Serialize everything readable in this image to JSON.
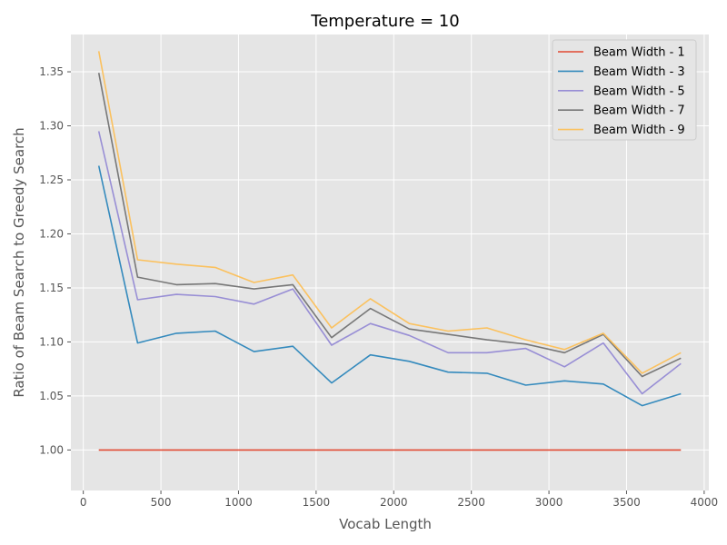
{
  "chart_data": {
    "type": "line",
    "title": "Temperature = 10",
    "xlabel": "Vocab Length",
    "ylabel": "Ratio of Beam Search to Greedy Search",
    "xlim": [
      -80,
      4030
    ],
    "ylim": [
      0.9625,
      1.3845
    ],
    "xticks": [
      0,
      500,
      1000,
      1500,
      2000,
      2500,
      3000,
      3500,
      4000
    ],
    "yticks": [
      1.0,
      1.05,
      1.1,
      1.15,
      1.2,
      1.25,
      1.3,
      1.35
    ],
    "x": [
      100,
      350,
      600,
      850,
      1100,
      1350,
      1600,
      1850,
      2100,
      2350,
      2600,
      2850,
      3100,
      3350,
      3600,
      3850
    ],
    "series": [
      {
        "name": "Beam Width - 1",
        "color": "#E24A33",
        "values": [
          1.0,
          1.0,
          1.0,
          1.0,
          1.0,
          1.0,
          1.0,
          1.0,
          1.0,
          1.0,
          1.0,
          1.0,
          1.0,
          1.0,
          1.0,
          1.0
        ]
      },
      {
        "name": "Beam Width - 3",
        "color": "#348ABD",
        "values": [
          1.263,
          1.099,
          1.108,
          1.11,
          1.091,
          1.096,
          1.062,
          1.088,
          1.082,
          1.072,
          1.071,
          1.06,
          1.064,
          1.061,
          1.041,
          1.052
        ]
      },
      {
        "name": "Beam Width - 5",
        "color": "#988ED5",
        "values": [
          1.295,
          1.139,
          1.144,
          1.142,
          1.135,
          1.149,
          1.097,
          1.117,
          1.106,
          1.09,
          1.09,
          1.094,
          1.077,
          1.099,
          1.052,
          1.08
        ]
      },
      {
        "name": "Beam Width - 7",
        "color": "#777777",
        "values": [
          1.349,
          1.16,
          1.153,
          1.154,
          1.149,
          1.153,
          1.104,
          1.131,
          1.112,
          1.107,
          1.102,
          1.098,
          1.09,
          1.107,
          1.068,
          1.085
        ]
      },
      {
        "name": "Beam Width - 9",
        "color": "#FBC15E",
        "values": [
          1.369,
          1.176,
          1.172,
          1.169,
          1.155,
          1.162,
          1.113,
          1.14,
          1.117,
          1.11,
          1.113,
          1.102,
          1.093,
          1.108,
          1.071,
          1.09
        ]
      }
    ],
    "grid": true,
    "legend": "top-right",
    "background": "#E5E5E5"
  }
}
